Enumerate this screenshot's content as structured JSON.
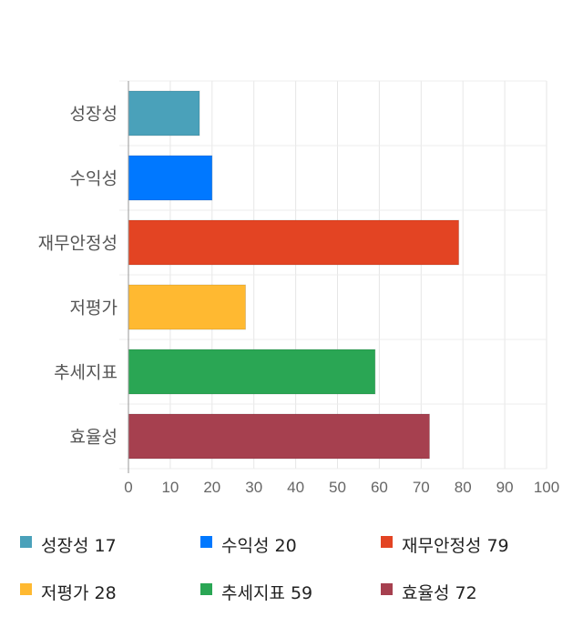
{
  "chart_data": {
    "type": "bar",
    "orientation": "horizontal",
    "categories": [
      "성장성",
      "수익성",
      "재무안정성",
      "저평가",
      "추세지표",
      "효율성"
    ],
    "values": [
      17,
      20,
      79,
      28,
      59,
      72
    ],
    "colors": [
      "#4aa1ba",
      "#0078ff",
      "#e34423",
      "#ffb931",
      "#2aa654",
      "#a6404f"
    ],
    "xlim": [
      0,
      100
    ],
    "x_ticks": [
      "0",
      "10",
      "20",
      "30",
      "40",
      "50",
      "60",
      "70",
      "80",
      "90",
      "100"
    ],
    "grid": true,
    "legend_position": "bottom",
    "legend": [
      {
        "label": "성장성 17"
      },
      {
        "label": "수익성 20"
      },
      {
        "label": "재무안정성 79"
      },
      {
        "label": "저평가 28"
      },
      {
        "label": "추세지표 59"
      },
      {
        "label": "효율성 72"
      }
    ]
  }
}
